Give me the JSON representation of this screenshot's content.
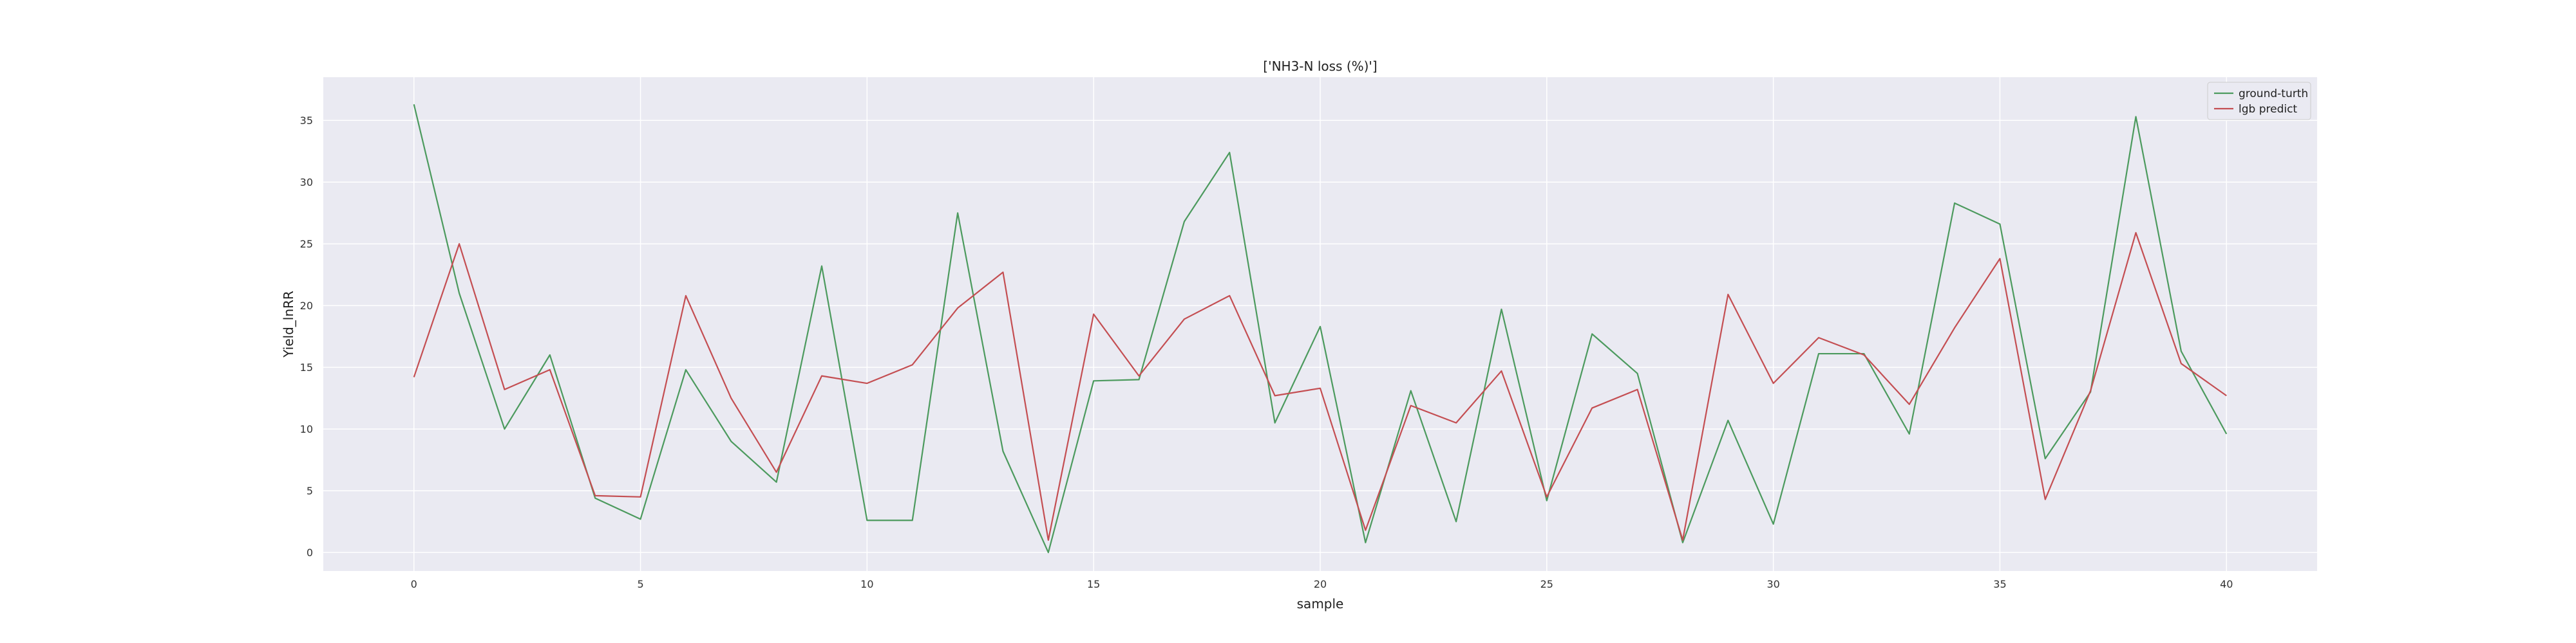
{
  "chart_data": {
    "type": "line",
    "title": "['NH3-N loss (%)']",
    "xlabel": "sample",
    "ylabel": "Yield_lnRR",
    "xlim": [
      -2,
      42
    ],
    "ylim": [
      -1.5,
      38.5
    ],
    "x_ticks": [
      0,
      5,
      10,
      15,
      20,
      25,
      30,
      35,
      40
    ],
    "y_ticks": [
      0,
      5,
      10,
      15,
      20,
      25,
      30,
      35
    ],
    "grid": true,
    "legend_position": "top-right",
    "x": [
      0,
      1,
      2,
      3,
      4,
      5,
      6,
      7,
      8,
      9,
      10,
      11,
      12,
      13,
      14,
      15,
      16,
      17,
      18,
      19,
      20,
      21,
      22,
      23,
      24,
      25,
      26,
      27,
      28,
      29,
      30,
      31,
      32,
      33,
      34,
      35,
      36,
      37,
      38,
      39,
      40
    ],
    "series": [
      {
        "name": "ground-turth",
        "color": "#4c9a5e",
        "values": [
          36.3,
          21.0,
          10.0,
          16.0,
          4.4,
          2.7,
          14.8,
          9.0,
          5.7,
          23.2,
          2.6,
          2.6,
          27.5,
          8.2,
          0.0,
          13.9,
          14.0,
          26.8,
          32.4,
          10.5,
          18.3,
          0.8,
          13.1,
          2.5,
          19.7,
          4.2,
          17.7,
          14.5,
          0.8,
          10.7,
          2.3,
          16.1,
          16.1,
          9.6,
          28.3,
          26.6,
          7.6,
          13.0,
          35.3,
          16.3,
          9.6
        ]
      },
      {
        "name": "lgb predict",
        "color": "#c44e52",
        "values": [
          14.2,
          25.0,
          13.2,
          14.8,
          4.6,
          4.5,
          20.8,
          12.5,
          6.5,
          14.3,
          13.7,
          15.2,
          19.8,
          22.7,
          1.0,
          19.3,
          14.3,
          18.9,
          20.8,
          12.7,
          13.3,
          1.8,
          11.9,
          10.5,
          14.7,
          4.5,
          11.7,
          13.2,
          1.0,
          20.9,
          13.7,
          17.4,
          16.0,
          12.0,
          18.2,
          23.8,
          4.3,
          13.1,
          25.9,
          15.3,
          12.7
        ]
      }
    ]
  }
}
